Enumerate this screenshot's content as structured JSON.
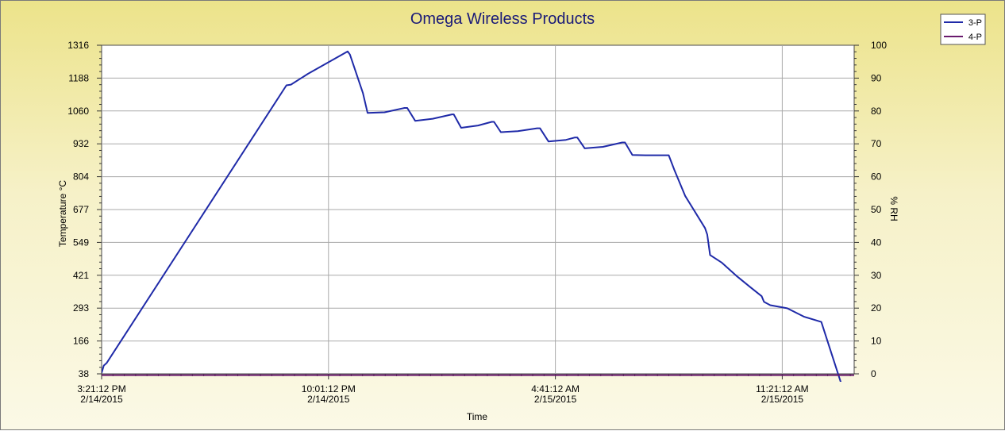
{
  "chart_data": {
    "type": "line",
    "title": "Omega Wireless Products",
    "xlabel": "Time",
    "ylabel": "Temperature °C",
    "y2label": "% RH",
    "ylim": [
      38,
      1316
    ],
    "y2lim": [
      0,
      100
    ],
    "xlim": [
      "2/14/2015 3:21:12 PM",
      "2/15/2015 1:28:00 PM"
    ],
    "y_ticks": [
      "1316",
      "1188",
      "1060",
      "932",
      "804",
      "677",
      "549",
      "421",
      "293",
      "166",
      "38"
    ],
    "y2_ticks": [
      "100",
      "90",
      "80",
      "70",
      "60",
      "50",
      "40",
      "30",
      "20",
      "10",
      "0"
    ],
    "x_ticks": [
      {
        "time": "3:21:12 PM",
        "date": "2/14/2015"
      },
      {
        "time": "10:01:12 PM",
        "date": "2/14/2015"
      },
      {
        "time": "4:41:12 AM",
        "date": "2/15/2015"
      },
      {
        "time": "11:21:12 AM",
        "date": "2/15/2015"
      }
    ],
    "grid": true,
    "legend_position": "top-right",
    "colors": {
      "3-P": "#1f2aa8",
      "4-P": "#6a1a6e",
      "grid": "#a9a9a9",
      "plot_bg": "#ffffff"
    },
    "series": [
      {
        "name": "3-P",
        "x": [
          "2/14/2015 3:21:12 PM",
          "2/14/2015 3:25:00 PM",
          "2/14/2015 3:30:00 PM",
          "2/14/2015 8:47:00 PM",
          "2/14/2015 8:55:00 PM",
          "2/14/2015 9:25:00 PM",
          "2/14/2015 10:35:00 PM",
          "2/14/2015 10:39:00 PM",
          "2/14/2015 11:02:00 PM",
          "2/14/2015 11:10:00 PM",
          "2/14/2015 11:40:00 PM",
          "2/15/2015 12:15:00 AM",
          "2/15/2015 12:20:00 AM",
          "2/15/2015 12:34:00 AM",
          "2/15/2015 1:05:00 AM",
          "2/15/2015 1:39:00 AM",
          "2/15/2015 1:42:00 AM",
          "2/15/2015 1:55:00 AM",
          "2/15/2015 2:25:00 AM",
          "2/15/2015 2:49:00 AM",
          "2/15/2015 2:53:00 AM",
          "2/15/2015 3:05:00 AM",
          "2/15/2015 3:35:00 AM",
          "2/15/2015 4:09:00 AM",
          "2/15/2015 4:14:00 AM",
          "2/15/2015 4:29:00 AM",
          "2/15/2015 5:00:00 AM",
          "2/15/2015 5:15:00 AM",
          "2/15/2015 5:20:00 AM",
          "2/15/2015 5:33:00 AM",
          "2/15/2015 6:05:00 AM",
          "2/15/2015 6:39:00 AM",
          "2/15/2015 6:44:00 AM",
          "2/15/2015 6:57:00 AM",
          "2/15/2015 7:20:00 AM",
          "2/15/2015 7:54:00 AM",
          "2/15/2015 8:01:00 AM",
          "2/15/2015 8:11:00 AM",
          "2/15/2015 8:30:00 AM",
          "2/15/2015 9:05:00 AM",
          "2/15/2015 9:09:00 AM",
          "2/15/2015 9:14:00 AM",
          "2/15/2015 9:35:00 AM",
          "2/15/2015 10:00:00 AM",
          "2/15/2015 10:25:00 AM",
          "2/15/2015 10:45:00 AM",
          "2/15/2015 10:49:00 AM",
          "2/15/2015 11:00:00 AM",
          "2/15/2015 11:30:00 AM",
          "2/15/2015 12:00:00 PM",
          "2/15/2015 12:30:00 PM",
          "2/15/2015 1:05:00 PM",
          "2/15/2015 1:11:00 PM",
          "2/15/2015 1:17:00 PM",
          "2/15/2015 1:28:00 PM"
        ],
        "values": [
          41,
          70,
          80,
          1160,
          1163,
          1205,
          1292,
          1280,
          1130,
          1053,
          1055,
          1072,
          1072,
          1022,
          1030,
          1047,
          1047,
          995,
          1004,
          1018,
          1018,
          978,
          982,
          993,
          993,
          942,
          948,
          957,
          957,
          915,
          921,
          938,
          938,
          889,
          888,
          888,
          888,
          831,
          730,
          605,
          580,
          500,
          470,
          420,
          375,
          340,
          318,
          305,
          293,
          260,
          240,
          1,
          1,
          1,
          1
        ]
      },
      {
        "name": "4-P",
        "x": [
          "2/14/2015 3:21:12 PM",
          "2/15/2015 1:28:00 PM"
        ],
        "values": [
          33,
          33
        ]
      }
    ]
  }
}
